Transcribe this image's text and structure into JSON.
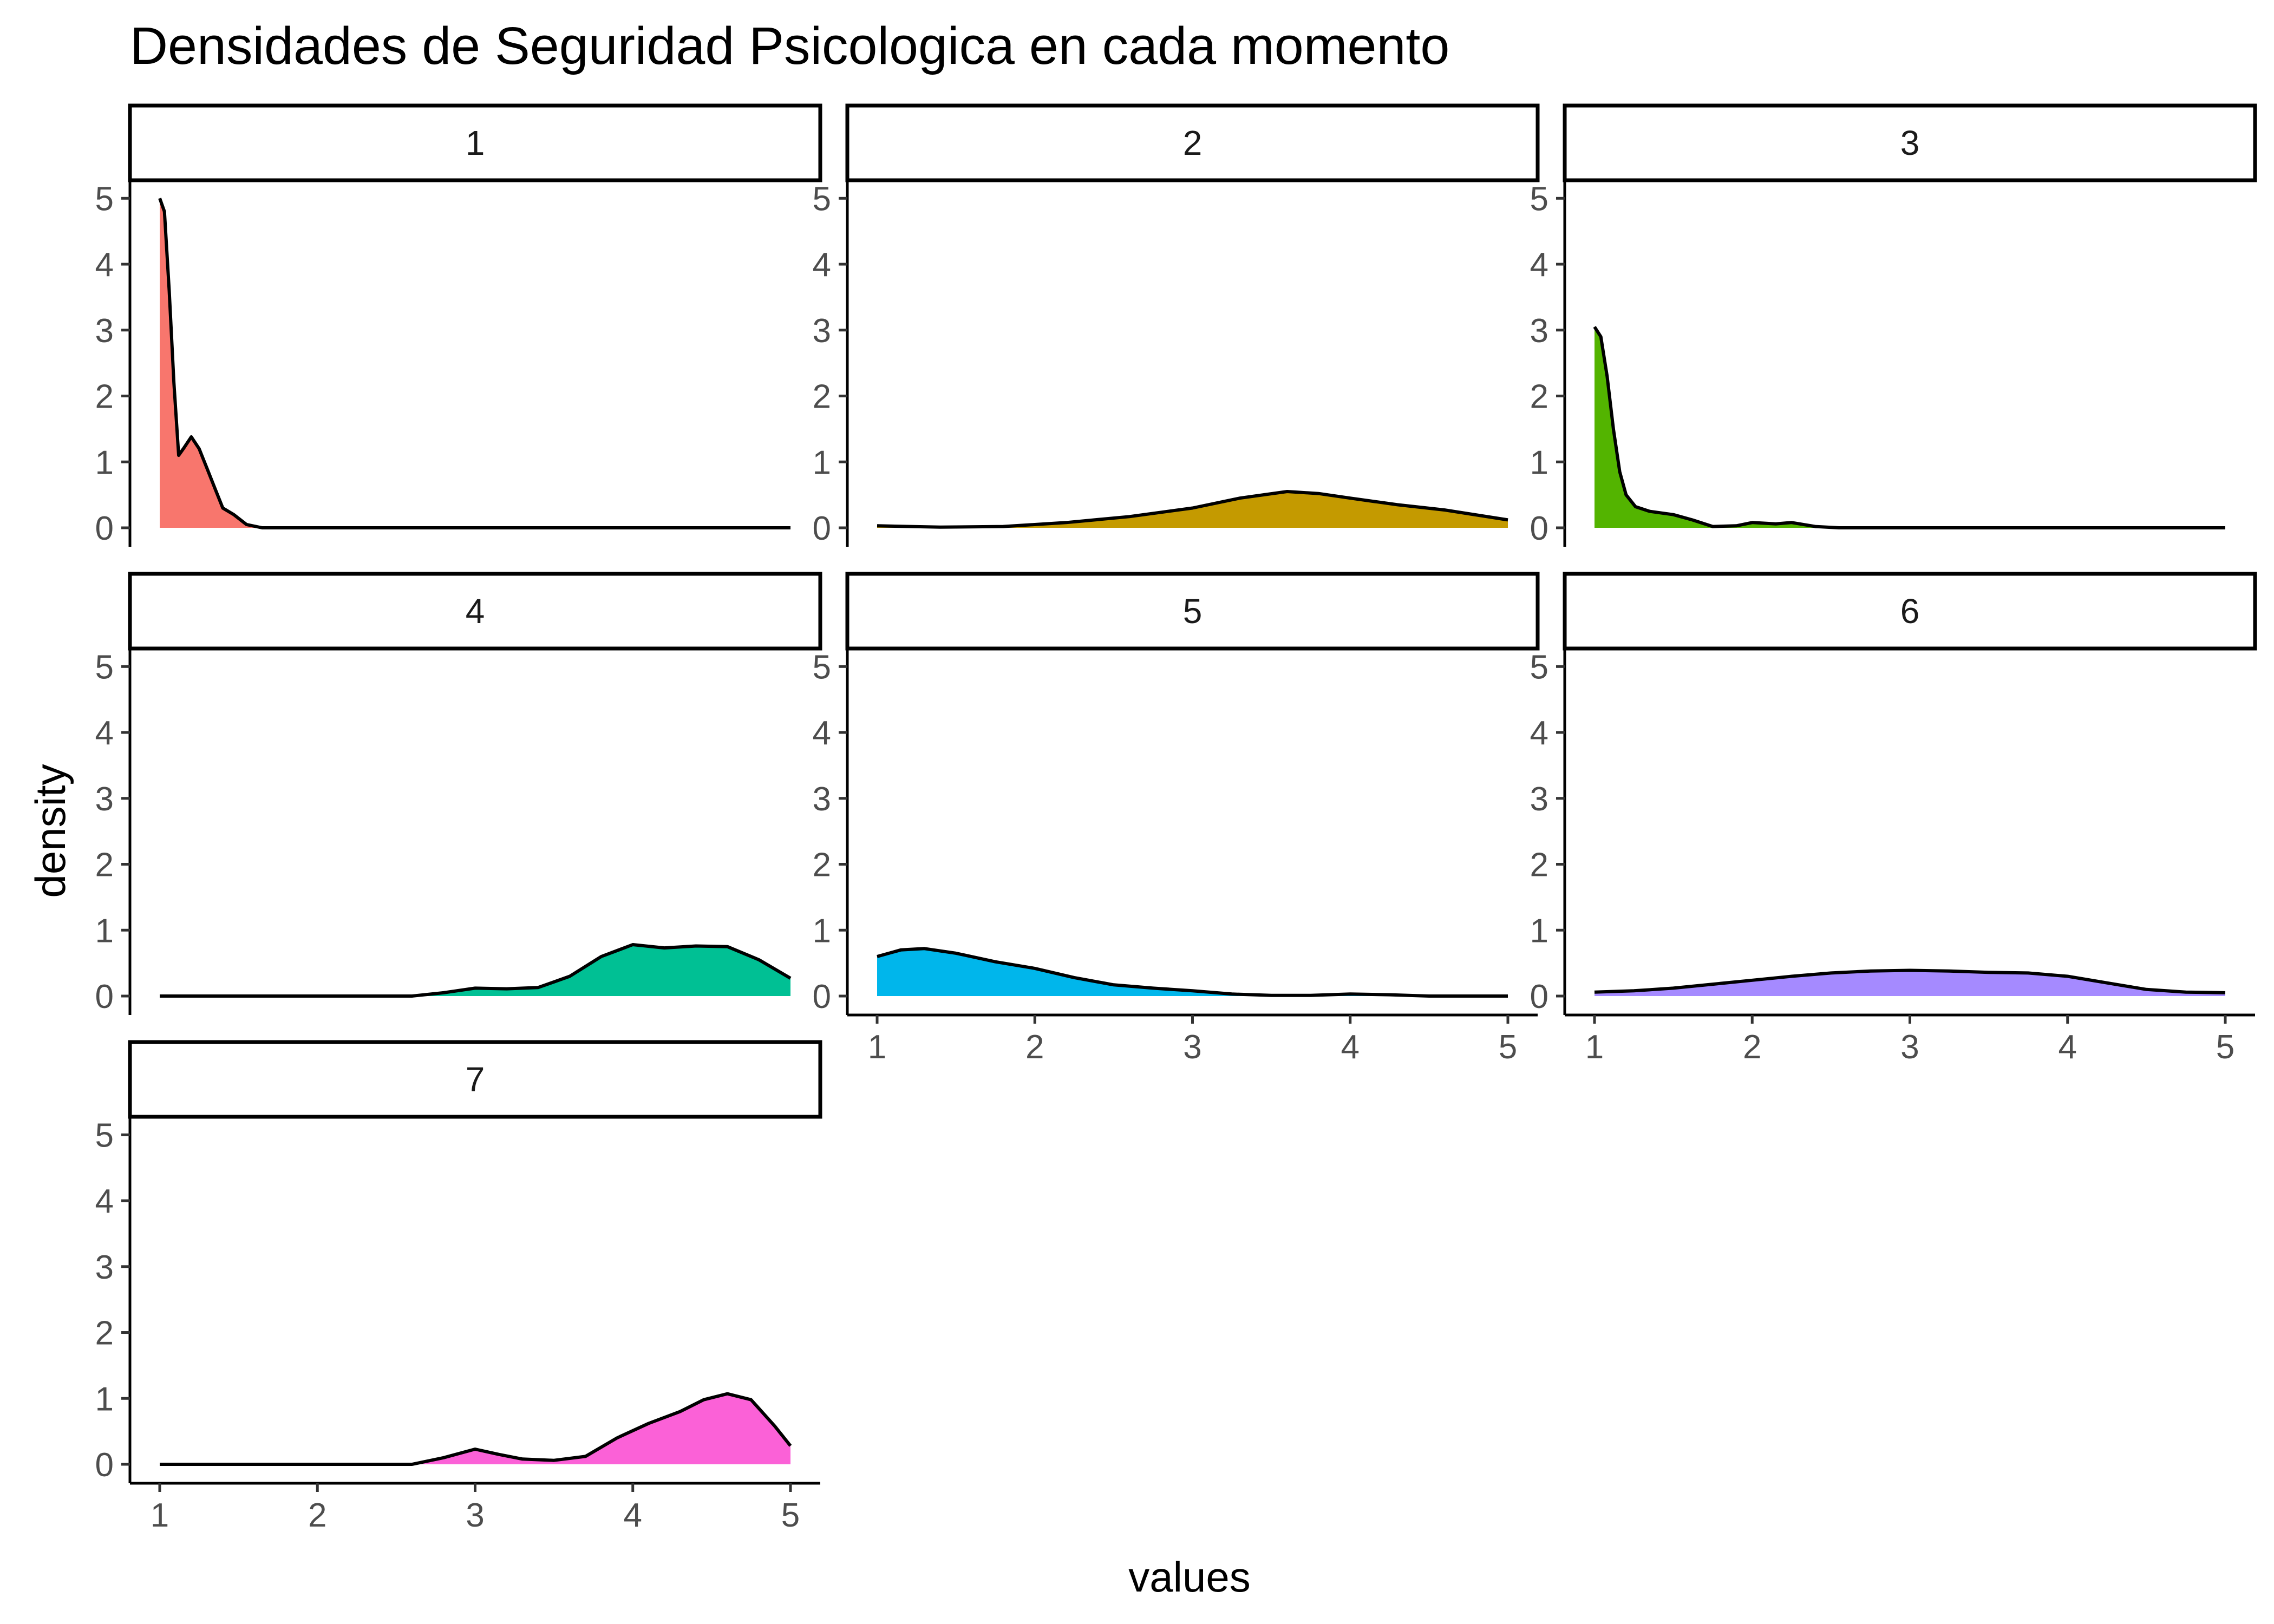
{
  "chart_data": {
    "type": "area",
    "title": "Densidades de Seguridad Psicologica en cada momento",
    "xlabel": "values",
    "ylabel": "density",
    "xlim": [
      1,
      5
    ],
    "ylim": [
      0,
      5
    ],
    "x_ticks": [
      1,
      2,
      3,
      4,
      5
    ],
    "y_ticks": [
      0,
      1,
      2,
      3,
      4,
      5
    ],
    "grid": false,
    "legend": "none",
    "facets": [
      {
        "label": "1",
        "color": "#F8766D",
        "points": [
          [
            1.0,
            5.0
          ],
          [
            1.03,
            4.8
          ],
          [
            1.06,
            3.6
          ],
          [
            1.09,
            2.2
          ],
          [
            1.12,
            1.1
          ],
          [
            1.15,
            1.2
          ],
          [
            1.2,
            1.38
          ],
          [
            1.25,
            1.2
          ],
          [
            1.3,
            0.9
          ],
          [
            1.35,
            0.6
          ],
          [
            1.4,
            0.3
          ],
          [
            1.47,
            0.2
          ],
          [
            1.55,
            0.05
          ],
          [
            1.65,
            0.0
          ],
          [
            2.0,
            0.0
          ],
          [
            3.0,
            0.0
          ],
          [
            4.0,
            0.0
          ],
          [
            5.0,
            0.0
          ]
        ]
      },
      {
        "label": "2",
        "color": "#C49A00",
        "points": [
          [
            1.0,
            0.03
          ],
          [
            1.4,
            0.01
          ],
          [
            1.8,
            0.02
          ],
          [
            2.2,
            0.08
          ],
          [
            2.6,
            0.17
          ],
          [
            3.0,
            0.3
          ],
          [
            3.3,
            0.45
          ],
          [
            3.6,
            0.55
          ],
          [
            3.8,
            0.52
          ],
          [
            4.0,
            0.45
          ],
          [
            4.3,
            0.35
          ],
          [
            4.6,
            0.27
          ],
          [
            5.0,
            0.12
          ]
        ]
      },
      {
        "label": "3",
        "color": "#53B400",
        "points": [
          [
            1.0,
            3.05
          ],
          [
            1.04,
            2.9
          ],
          [
            1.08,
            2.3
          ],
          [
            1.12,
            1.5
          ],
          [
            1.16,
            0.85
          ],
          [
            1.2,
            0.5
          ],
          [
            1.26,
            0.32
          ],
          [
            1.35,
            0.25
          ],
          [
            1.5,
            0.2
          ],
          [
            1.62,
            0.12
          ],
          [
            1.75,
            0.02
          ],
          [
            1.9,
            0.03
          ],
          [
            2.0,
            0.08
          ],
          [
            2.15,
            0.06
          ],
          [
            2.25,
            0.08
          ],
          [
            2.4,
            0.02
          ],
          [
            2.55,
            0.0
          ],
          [
            3.0,
            0.0
          ],
          [
            4.0,
            0.0
          ],
          [
            5.0,
            0.0
          ]
        ]
      },
      {
        "label": "4",
        "color": "#00C094",
        "points": [
          [
            1.0,
            0.0
          ],
          [
            2.0,
            0.0
          ],
          [
            2.6,
            0.0
          ],
          [
            2.8,
            0.05
          ],
          [
            3.0,
            0.12
          ],
          [
            3.2,
            0.11
          ],
          [
            3.4,
            0.13
          ],
          [
            3.6,
            0.3
          ],
          [
            3.8,
            0.6
          ],
          [
            4.0,
            0.78
          ],
          [
            4.2,
            0.73
          ],
          [
            4.4,
            0.76
          ],
          [
            4.6,
            0.75
          ],
          [
            4.8,
            0.55
          ],
          [
            5.0,
            0.27
          ]
        ]
      },
      {
        "label": "5",
        "color": "#00B6EB",
        "points": [
          [
            1.0,
            0.6
          ],
          [
            1.15,
            0.7
          ],
          [
            1.3,
            0.72
          ],
          [
            1.5,
            0.65
          ],
          [
            1.75,
            0.52
          ],
          [
            2.0,
            0.42
          ],
          [
            2.25,
            0.28
          ],
          [
            2.5,
            0.17
          ],
          [
            2.75,
            0.12
          ],
          [
            3.0,
            0.08
          ],
          [
            3.25,
            0.03
          ],
          [
            3.5,
            0.01
          ],
          [
            3.75,
            0.01
          ],
          [
            4.0,
            0.03
          ],
          [
            4.25,
            0.02
          ],
          [
            4.5,
            0.0
          ],
          [
            5.0,
            0.0
          ]
        ]
      },
      {
        "label": "6",
        "color": "#A58AFF",
        "points": [
          [
            1.0,
            0.06
          ],
          [
            1.25,
            0.08
          ],
          [
            1.5,
            0.12
          ],
          [
            1.75,
            0.18
          ],
          [
            2.0,
            0.24
          ],
          [
            2.25,
            0.3
          ],
          [
            2.5,
            0.35
          ],
          [
            2.75,
            0.38
          ],
          [
            3.0,
            0.39
          ],
          [
            3.25,
            0.38
          ],
          [
            3.5,
            0.36
          ],
          [
            3.75,
            0.35
          ],
          [
            4.0,
            0.3
          ],
          [
            4.25,
            0.2
          ],
          [
            4.5,
            0.1
          ],
          [
            4.75,
            0.06
          ],
          [
            5.0,
            0.05
          ]
        ]
      },
      {
        "label": "7",
        "color": "#FB61D7",
        "points": [
          [
            1.0,
            0.0
          ],
          [
            2.0,
            0.0
          ],
          [
            2.6,
            0.0
          ],
          [
            2.8,
            0.1
          ],
          [
            3.0,
            0.23
          ],
          [
            3.15,
            0.15
          ],
          [
            3.3,
            0.08
          ],
          [
            3.5,
            0.06
          ],
          [
            3.7,
            0.12
          ],
          [
            3.9,
            0.4
          ],
          [
            4.1,
            0.62
          ],
          [
            4.3,
            0.8
          ],
          [
            4.45,
            0.98
          ],
          [
            4.6,
            1.07
          ],
          [
            4.75,
            0.98
          ],
          [
            4.9,
            0.58
          ],
          [
            5.0,
            0.28
          ]
        ]
      }
    ]
  }
}
